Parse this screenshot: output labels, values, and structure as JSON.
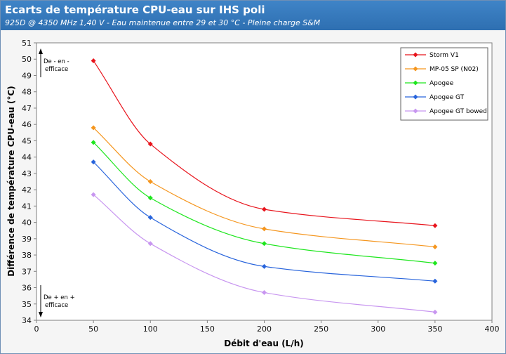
{
  "header": {
    "title": "Ecarts de température CPU-eau sur IHS poli",
    "subtitle": "925D @ 4350 MHz 1,40 V -  Eau maintenue entre 29 et 30 °C - Pleine charge S&M"
  },
  "chart_data": {
    "type": "line",
    "title": "Ecarts de température CPU-eau sur IHS poli",
    "subtitle": "925D @ 4350 MHz 1,40 V -  Eau maintenue entre 29 et 30 °C - Pleine charge S&M",
    "xlabel": "Débit d'eau (L/h)",
    "ylabel": "Différence de température CPU-eau (°C)",
    "xlim": [
      0,
      400
    ],
    "ylim": [
      34,
      51
    ],
    "x_ticks": [
      0,
      50,
      100,
      150,
      200,
      250,
      300,
      350,
      400
    ],
    "y_ticks": [
      34,
      35,
      36,
      37,
      38,
      39,
      40,
      41,
      42,
      43,
      44,
      45,
      46,
      47,
      48,
      49,
      50,
      51
    ],
    "grid": false,
    "legend_position": "top-right",
    "x": [
      50,
      100,
      200,
      350
    ],
    "series": [
      {
        "name": "Storm V1",
        "color": "#e8141c",
        "values": [
          49.9,
          44.8,
          40.8,
          39.8
        ]
      },
      {
        "name": "MP-05 SP (N02)",
        "color": "#f5961e",
        "values": [
          45.8,
          42.5,
          39.6,
          38.5
        ]
      },
      {
        "name": "Apogee",
        "color": "#1ee61e",
        "values": [
          44.9,
          41.5,
          38.7,
          37.5
        ]
      },
      {
        "name": "Apogee GT",
        "color": "#2864dc",
        "values": [
          43.7,
          40.3,
          37.3,
          36.4
        ]
      },
      {
        "name": "Apogee GT bowed",
        "color": "#c896f0",
        "values": [
          41.7,
          38.7,
          35.7,
          34.5
        ]
      }
    ],
    "annotations": {
      "top": [
        "De - en -",
        "efficace"
      ],
      "bottom": [
        "De + en +",
        "efficace"
      ]
    }
  }
}
